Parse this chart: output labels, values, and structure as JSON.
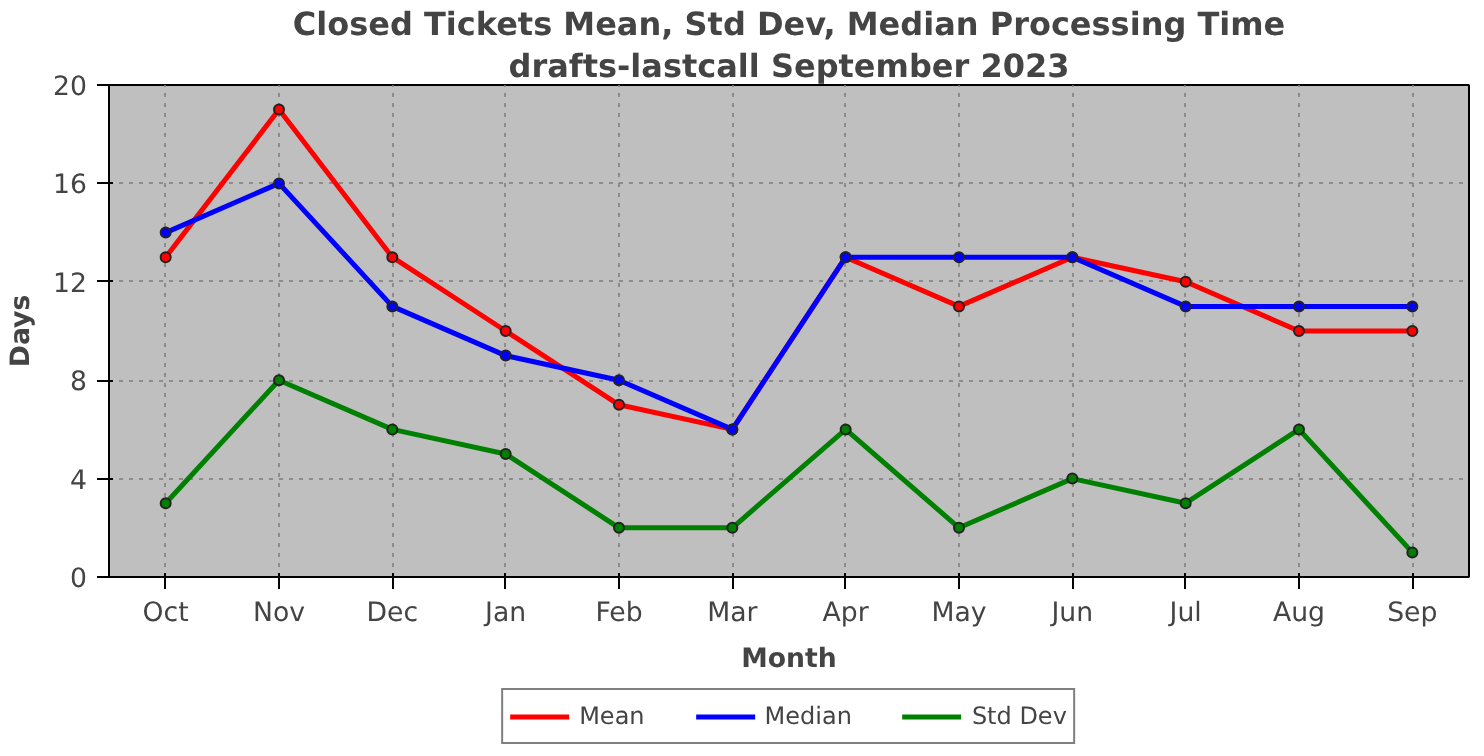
{
  "chart_data": {
    "type": "line",
    "title": "Closed Tickets Mean, Std Dev, Median Processing Time",
    "subtitle": "drafts-lastcall September 2023",
    "xlabel": "Month",
    "ylabel": "Days",
    "categories": [
      "Oct",
      "Nov",
      "Dec",
      "Jan",
      "Feb",
      "Mar",
      "Apr",
      "May",
      "Jun",
      "Jul",
      "Aug",
      "Sep"
    ],
    "series": [
      {
        "name": "Mean",
        "color": "#ff0000",
        "values": [
          13,
          19,
          13,
          10,
          7,
          6,
          13,
          11,
          13,
          12,
          10,
          10
        ]
      },
      {
        "name": "Median",
        "color": "#0000ff",
        "values": [
          14,
          16,
          11,
          9,
          8,
          6,
          13,
          13,
          13,
          11,
          11,
          11
        ]
      },
      {
        "name": "Std Dev",
        "color": "#008000",
        "values": [
          3,
          8,
          6,
          5,
          2,
          2,
          6,
          2,
          4,
          3,
          6,
          1
        ]
      }
    ],
    "ylim": [
      0,
      20
    ],
    "yticks": [
      0,
      4,
      8,
      12,
      16,
      20
    ],
    "grid": true,
    "legend": "bottom",
    "marker": "circle",
    "line_style": "solid"
  }
}
